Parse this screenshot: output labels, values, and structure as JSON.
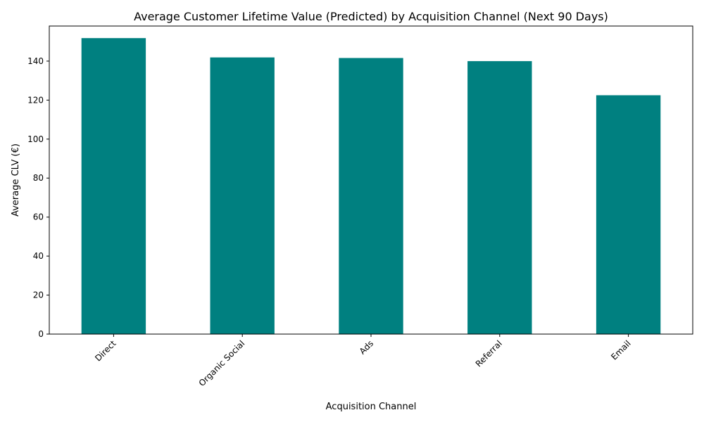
{
  "chart_data": {
    "type": "bar",
    "title": "Average Customer Lifetime Value (Predicted) by Acquisition Channel (Next 90 Days)",
    "xlabel": "Acquisition Channel",
    "ylabel": "Average CLV (€)",
    "categories": [
      "Direct",
      "Organic Social",
      "Ads",
      "Referral",
      "Email"
    ],
    "values": [
      151.8,
      141.9,
      141.6,
      140.0,
      122.5
    ],
    "ylim": [
      0,
      158
    ],
    "yticks": [
      0,
      20,
      40,
      60,
      80,
      100,
      120,
      140
    ],
    "bar_color": "#008080",
    "grid": false,
    "legend": "none"
  }
}
